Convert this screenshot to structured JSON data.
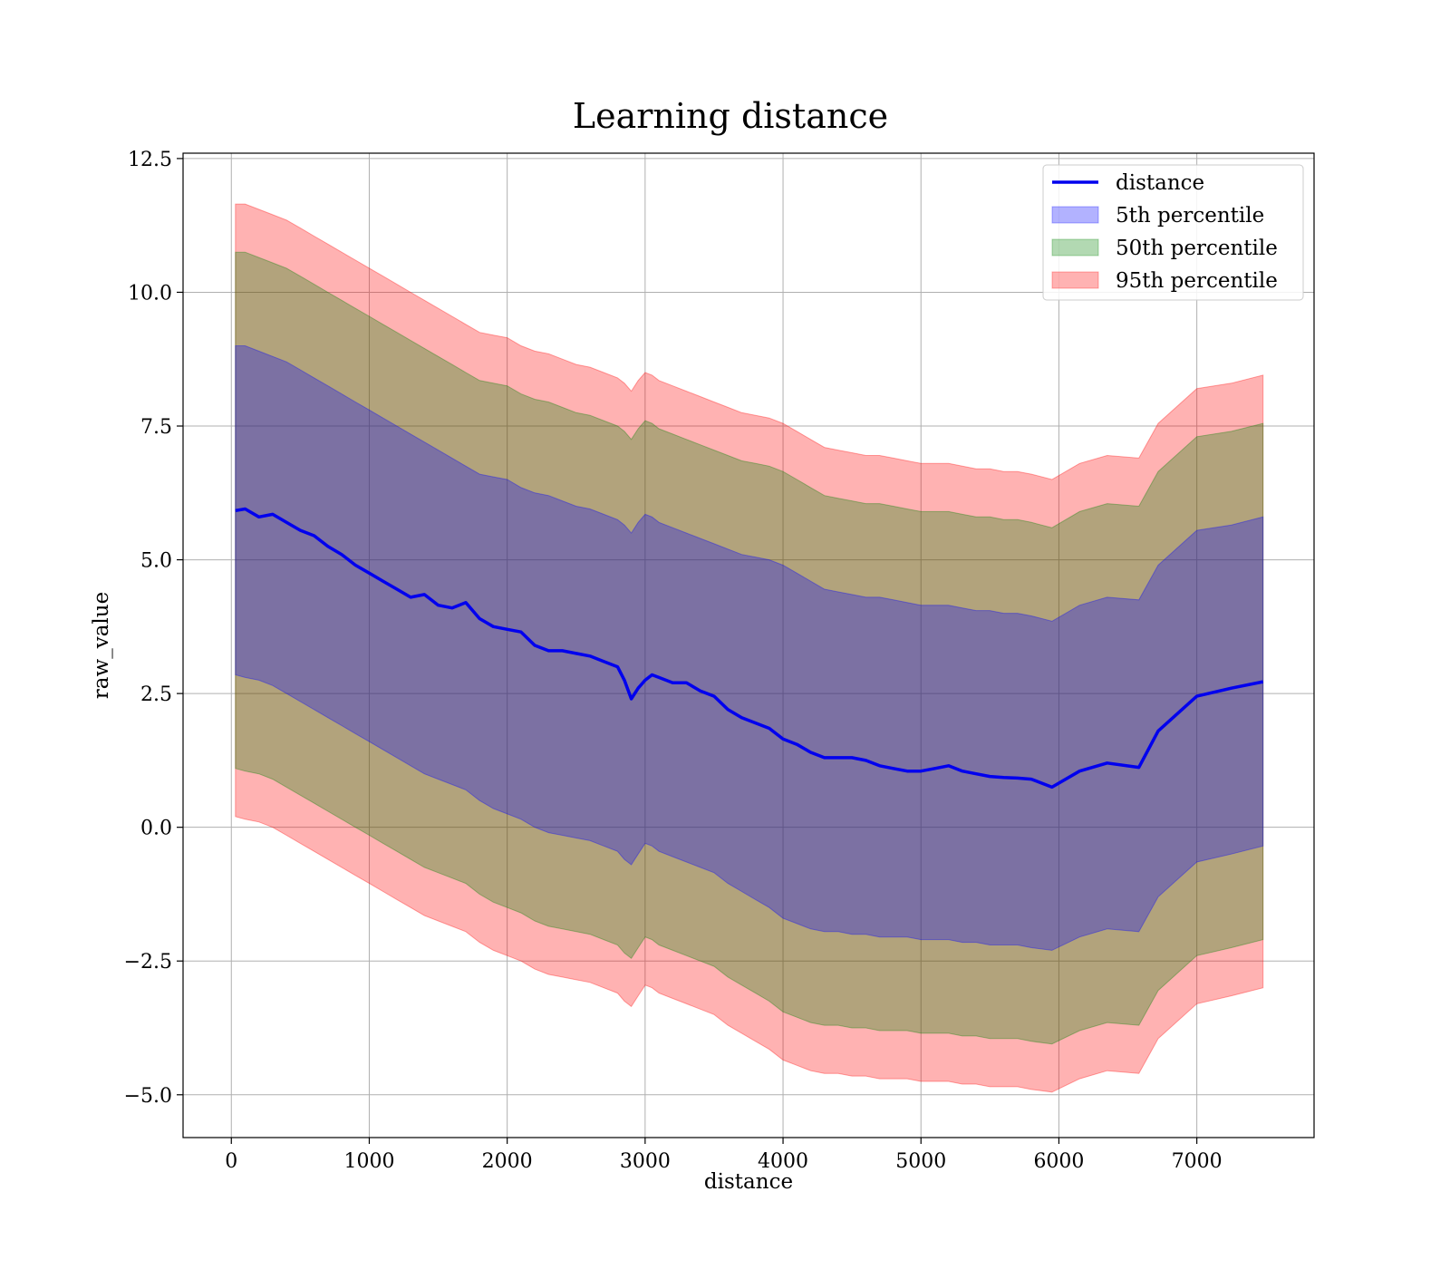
{
  "chart_data": {
    "type": "area",
    "title": "Learning distance",
    "xlabel": "distance",
    "ylabel": "raw_value",
    "xlim": [
      -350,
      7850
    ],
    "ylim": [
      -5.8,
      12.6
    ],
    "xticks": [
      0,
      1000,
      2000,
      3000,
      4000,
      5000,
      6000,
      7000
    ],
    "yticks": [
      -5.0,
      -2.5,
      0.0,
      2.5,
      5.0,
      7.5,
      10.0,
      12.5
    ],
    "xtick_labels": [
      "0",
      "1000",
      "2000",
      "3000",
      "4000",
      "5000",
      "6000",
      "7000"
    ],
    "ytick_labels": [
      "−5.0",
      "−2.5",
      "0.0",
      "2.5",
      "5.0",
      "7.5",
      "10.0",
      "12.5"
    ],
    "grid": true,
    "legend_position": "top-right",
    "legend": [
      "distance",
      "5th percentile",
      "50th percentile",
      "95th percentile"
    ],
    "colors": {
      "line": "#0000ee",
      "band_5": "#0000ff",
      "band_50": "#008000",
      "band_95": "#ff0000",
      "grid": "#b0b0b0"
    },
    "x": [
      30,
      100,
      200,
      300,
      400,
      500,
      600,
      700,
      800,
      900,
      1000,
      1100,
      1200,
      1300,
      1400,
      1500,
      1600,
      1700,
      1800,
      1900,
      2000,
      2100,
      2200,
      2300,
      2400,
      2500,
      2600,
      2700,
      2800,
      2850,
      2900,
      2950,
      3000,
      3050,
      3100,
      3200,
      3300,
      3400,
      3500,
      3600,
      3700,
      3800,
      3900,
      4000,
      4100,
      4200,
      4300,
      4400,
      4500,
      4600,
      4700,
      4800,
      4900,
      5000,
      5100,
      5200,
      5300,
      5400,
      5500,
      5600,
      5700,
      5800,
      5950,
      6150,
      6350,
      6580,
      6720,
      7000,
      7250,
      7480
    ],
    "series": [
      {
        "name": "distance",
        "values": [
          5.92,
          5.95,
          5.8,
          5.85,
          5.7,
          5.55,
          5.45,
          5.25,
          5.1,
          4.9,
          4.75,
          4.6,
          4.45,
          4.3,
          4.35,
          4.15,
          4.1,
          4.2,
          3.9,
          3.75,
          3.7,
          3.65,
          3.4,
          3.3,
          3.3,
          3.25,
          3.2,
          3.1,
          3.0,
          2.75,
          2.4,
          2.6,
          2.75,
          2.85,
          2.8,
          2.7,
          2.7,
          2.55,
          2.45,
          2.2,
          2.05,
          1.95,
          1.85,
          1.65,
          1.55,
          1.4,
          1.3,
          1.3,
          1.3,
          1.25,
          1.15,
          1.1,
          1.05,
          1.05,
          1.1,
          1.15,
          1.05,
          1.0,
          0.95,
          0.93,
          0.92,
          0.9,
          0.75,
          1.05,
          1.2,
          1.12,
          1.8,
          2.45,
          2.6,
          2.72
        ]
      },
      {
        "name": "5th percentile",
        "values_lower": [
          2.85,
          2.8,
          2.75,
          2.65,
          2.5,
          2.35,
          2.2,
          2.05,
          1.9,
          1.75,
          1.6,
          1.45,
          1.3,
          1.15,
          1.0,
          0.9,
          0.8,
          0.7,
          0.5,
          0.35,
          0.25,
          0.15,
          0.0,
          -0.1,
          -0.15,
          -0.2,
          -0.25,
          -0.35,
          -0.45,
          -0.6,
          -0.7,
          -0.5,
          -0.3,
          -0.35,
          -0.45,
          -0.55,
          -0.65,
          -0.75,
          -0.85,
          -1.05,
          -1.2,
          -1.35,
          -1.5,
          -1.7,
          -1.8,
          -1.9,
          -1.95,
          -1.95,
          -2.0,
          -2.0,
          -2.05,
          -2.05,
          -2.05,
          -2.1,
          -2.1,
          -2.1,
          -2.15,
          -2.15,
          -2.2,
          -2.2,
          -2.2,
          -2.25,
          -2.3,
          -2.05,
          -1.9,
          -1.95,
          -1.3,
          -0.65,
          -0.5,
          -0.35
        ],
        "values_upper": [
          9.0,
          9.0,
          8.9,
          8.8,
          8.7,
          8.55,
          8.4,
          8.25,
          8.1,
          7.95,
          7.8,
          7.65,
          7.5,
          7.35,
          7.2,
          7.05,
          6.9,
          6.75,
          6.6,
          6.55,
          6.5,
          6.35,
          6.25,
          6.2,
          6.1,
          6.0,
          5.95,
          5.85,
          5.75,
          5.65,
          5.5,
          5.7,
          5.85,
          5.8,
          5.7,
          5.6,
          5.5,
          5.4,
          5.3,
          5.2,
          5.1,
          5.05,
          5.0,
          4.9,
          4.75,
          4.6,
          4.45,
          4.4,
          4.35,
          4.3,
          4.3,
          4.25,
          4.2,
          4.15,
          4.15,
          4.15,
          4.1,
          4.05,
          4.05,
          4.0,
          4.0,
          3.95,
          3.85,
          4.15,
          4.3,
          4.25,
          4.9,
          5.55,
          5.65,
          5.8
        ]
      },
      {
        "name": "50th percentile",
        "values_lower": [
          1.1,
          1.05,
          1.0,
          0.9,
          0.75,
          0.6,
          0.45,
          0.3,
          0.15,
          0.0,
          -0.15,
          -0.3,
          -0.45,
          -0.6,
          -0.75,
          -0.85,
          -0.95,
          -1.05,
          -1.25,
          -1.4,
          -1.5,
          -1.6,
          -1.75,
          -1.85,
          -1.9,
          -1.95,
          -2.0,
          -2.1,
          -2.2,
          -2.35,
          -2.45,
          -2.25,
          -2.05,
          -2.1,
          -2.2,
          -2.3,
          -2.4,
          -2.5,
          -2.6,
          -2.8,
          -2.95,
          -3.1,
          -3.25,
          -3.45,
          -3.55,
          -3.65,
          -3.7,
          -3.7,
          -3.75,
          -3.75,
          -3.8,
          -3.8,
          -3.8,
          -3.85,
          -3.85,
          -3.85,
          -3.9,
          -3.9,
          -3.95,
          -3.95,
          -3.95,
          -4.0,
          -4.05,
          -3.8,
          -3.65,
          -3.7,
          -3.05,
          -2.4,
          -2.25,
          -2.1
        ],
        "values_upper": [
          10.75,
          10.75,
          10.65,
          10.55,
          10.45,
          10.3,
          10.15,
          10.0,
          9.85,
          9.7,
          9.55,
          9.4,
          9.25,
          9.1,
          8.95,
          8.8,
          8.65,
          8.5,
          8.35,
          8.3,
          8.25,
          8.1,
          8.0,
          7.95,
          7.85,
          7.75,
          7.7,
          7.6,
          7.5,
          7.4,
          7.25,
          7.45,
          7.6,
          7.55,
          7.45,
          7.35,
          7.25,
          7.15,
          7.05,
          6.95,
          6.85,
          6.8,
          6.75,
          6.65,
          6.5,
          6.35,
          6.2,
          6.15,
          6.1,
          6.05,
          6.05,
          6.0,
          5.95,
          5.9,
          5.9,
          5.9,
          5.85,
          5.8,
          5.8,
          5.75,
          5.75,
          5.7,
          5.6,
          5.9,
          6.05,
          6.0,
          6.65,
          7.3,
          7.4,
          7.55
        ]
      },
      {
        "name": "95th percentile",
        "values_lower": [
          0.2,
          0.15,
          0.1,
          0.0,
          -0.15,
          -0.3,
          -0.45,
          -0.6,
          -0.75,
          -0.9,
          -1.05,
          -1.2,
          -1.35,
          -1.5,
          -1.65,
          -1.75,
          -1.85,
          -1.95,
          -2.15,
          -2.3,
          -2.4,
          -2.5,
          -2.65,
          -2.75,
          -2.8,
          -2.85,
          -2.9,
          -3.0,
          -3.1,
          -3.25,
          -3.35,
          -3.15,
          -2.95,
          -3.0,
          -3.1,
          -3.2,
          -3.3,
          -3.4,
          -3.5,
          -3.7,
          -3.85,
          -4.0,
          -4.15,
          -4.35,
          -4.45,
          -4.55,
          -4.6,
          -4.6,
          -4.65,
          -4.65,
          -4.7,
          -4.7,
          -4.7,
          -4.75,
          -4.75,
          -4.75,
          -4.8,
          -4.8,
          -4.85,
          -4.85,
          -4.85,
          -4.9,
          -4.95,
          -4.7,
          -4.55,
          -4.6,
          -3.95,
          -3.3,
          -3.15,
          -3.0
        ],
        "values_upper": [
          11.65,
          11.65,
          11.55,
          11.45,
          11.35,
          11.2,
          11.05,
          10.9,
          10.75,
          10.6,
          10.45,
          10.3,
          10.15,
          10.0,
          9.85,
          9.7,
          9.55,
          9.4,
          9.25,
          9.2,
          9.15,
          9.0,
          8.9,
          8.85,
          8.75,
          8.65,
          8.6,
          8.5,
          8.4,
          8.3,
          8.15,
          8.35,
          8.5,
          8.45,
          8.35,
          8.25,
          8.15,
          8.05,
          7.95,
          7.85,
          7.75,
          7.7,
          7.65,
          7.55,
          7.4,
          7.25,
          7.1,
          7.05,
          7.0,
          6.95,
          6.95,
          6.9,
          6.85,
          6.8,
          6.8,
          6.8,
          6.75,
          6.7,
          6.7,
          6.65,
          6.65,
          6.6,
          6.5,
          6.8,
          6.95,
          6.9,
          7.55,
          8.2,
          8.3,
          8.45
        ]
      }
    ]
  }
}
